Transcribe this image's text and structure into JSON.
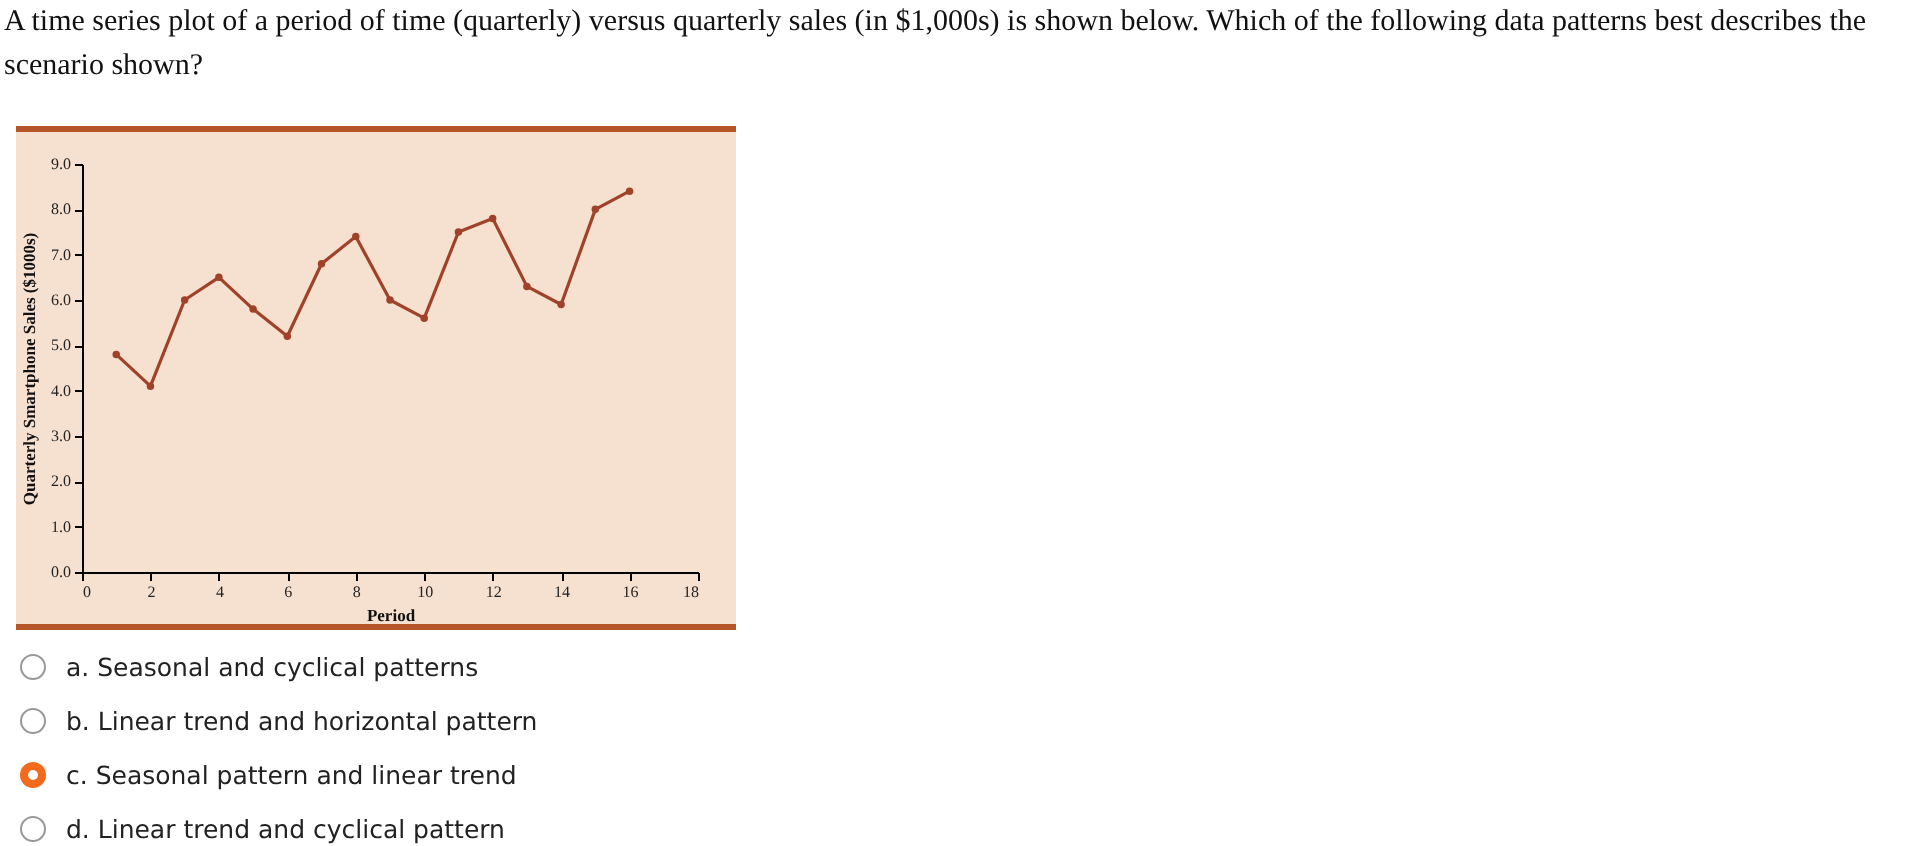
{
  "chart_data": {
    "type": "line",
    "title": "A time series plot of a period of time (quarterly) versus quarterly sales (in $1,000s) is shown below. Which of the following data patterns best describes the scenario shown?",
    "xlabel": "Period",
    "ylabel": "Quarterly Smartphone Sales ($1000s)",
    "x": [
      1,
      2,
      3,
      4,
      5,
      6,
      7,
      8,
      9,
      10,
      11,
      12,
      13,
      14,
      15,
      16
    ],
    "series": [
      {
        "color": "#a0422a",
        "values": [
          4.8,
          4.1,
          6.0,
          6.5,
          5.8,
          5.2,
          6.8,
          7.4,
          6.0,
          5.6,
          7.5,
          7.8,
          6.3,
          5.9,
          8.0,
          8.4
        ]
      }
    ],
    "xlim": [
      0,
      18
    ],
    "xticks": [
      0,
      2,
      4,
      6,
      8,
      10,
      12,
      14,
      16,
      18
    ],
    "ylim": [
      0,
      9
    ],
    "yticks": [
      {
        "value": 0,
        "label": "0.0"
      },
      {
        "value": 1,
        "label": "1.0"
      },
      {
        "value": 2,
        "label": "2.0"
      },
      {
        "value": 3,
        "label": "3.0"
      },
      {
        "value": 4,
        "label": "4.0"
      },
      {
        "value": 5,
        "label": "5.0"
      },
      {
        "value": 6,
        "label": "6.0"
      },
      {
        "value": 7,
        "label": "7.0"
      },
      {
        "value": 8,
        "label": "8.0"
      },
      {
        "value": 9,
        "label": "9.0"
      }
    ],
    "grid": false,
    "marker": "circle",
    "line_style": "solid",
    "legend": false,
    "annotations": [
      "a. Seasonal and cyclical patterns",
      "b. Linear trend and horizontal pattern",
      "c. Seasonal pattern and linear trend",
      "d. Linear trend and cyclical pattern"
    ]
  }
}
